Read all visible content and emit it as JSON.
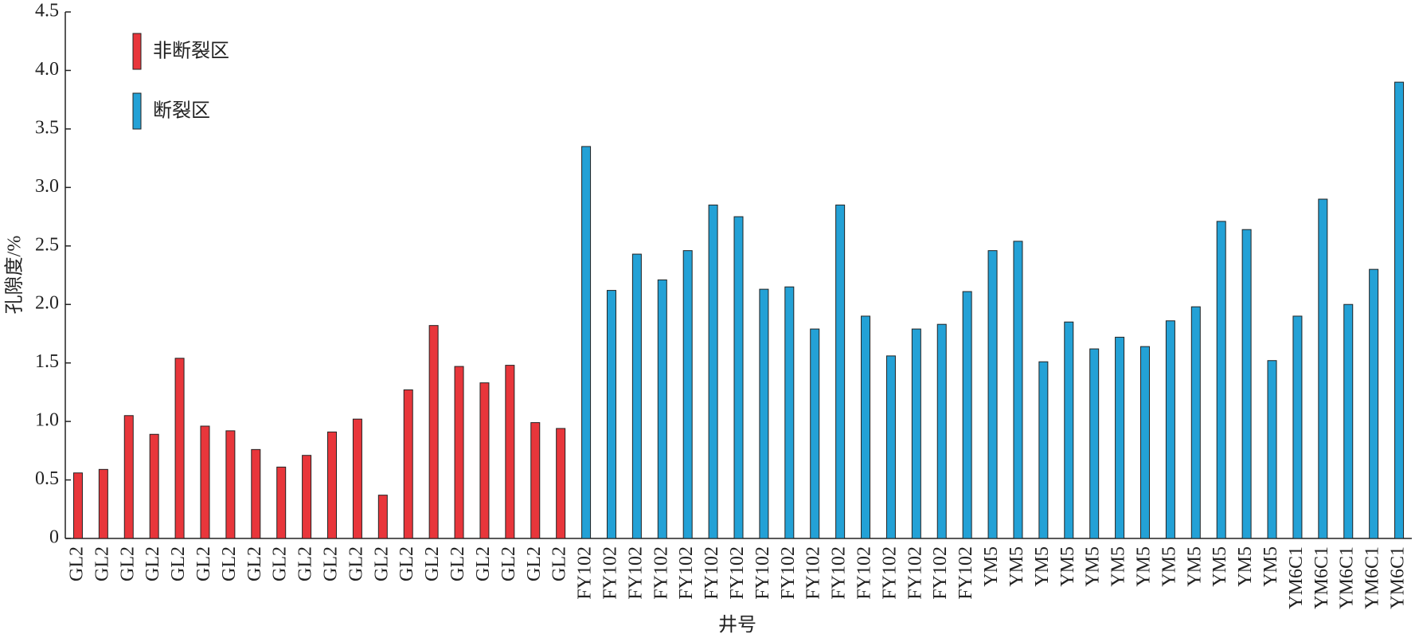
{
  "chart_data": {
    "type": "bar",
    "xlabel": "井号",
    "ylabel": "孔隙度/%",
    "categories": [
      "GL2",
      "GL2",
      "GL2",
      "GL2",
      "GL2",
      "GL2",
      "GL2",
      "GL2",
      "GL2",
      "GL2",
      "GL2",
      "GL2",
      "GL2",
      "GL2",
      "GL2",
      "GL2",
      "GL2",
      "GL2",
      "GL2",
      "GL2",
      "FY102",
      "FY102",
      "FY102",
      "FY102",
      "FY102",
      "FY102",
      "FY102",
      "FY102",
      "FY102",
      "FY102",
      "FY102",
      "FY102",
      "FY102",
      "FY102",
      "FY102",
      "FY102",
      "YM5",
      "YM5",
      "YM5",
      "YM5",
      "YM5",
      "YM5",
      "YM5",
      "YM5",
      "YM5",
      "YM5",
      "YM5",
      "YM5",
      "YM6C1",
      "YM6C1",
      "YM6C1",
      "YM6C1",
      "YM6C1"
    ],
    "series": [
      {
        "name": "非断裂区",
        "color": "#e8363b",
        "values": [
          0.56,
          0.59,
          1.05,
          0.89,
          1.54,
          0.96,
          0.92,
          0.76,
          0.61,
          0.71,
          0.91,
          1.02,
          0.37,
          1.27,
          1.82,
          1.47,
          1.33,
          1.48,
          0.99,
          0.94,
          null,
          null,
          null,
          null,
          null,
          null,
          null,
          null,
          null,
          null,
          null,
          null,
          null,
          null,
          null,
          null,
          null,
          null,
          null,
          null,
          null,
          null,
          null,
          null,
          null,
          null,
          null,
          null,
          null,
          null,
          null,
          null,
          null
        ]
      },
      {
        "name": "断裂区",
        "color": "#23a1d6",
        "values": [
          null,
          null,
          null,
          null,
          null,
          null,
          null,
          null,
          null,
          null,
          null,
          null,
          null,
          null,
          null,
          null,
          null,
          null,
          null,
          null,
          3.35,
          2.12,
          2.43,
          2.21,
          2.46,
          2.85,
          2.75,
          2.13,
          2.15,
          1.79,
          2.85,
          1.9,
          1.56,
          1.79,
          1.83,
          2.11,
          2.46,
          2.54,
          1.51,
          1.85,
          1.62,
          1.72,
          1.64,
          1.86,
          1.98,
          2.71,
          2.64,
          1.52,
          1.9,
          2.9,
          2.0,
          2.3,
          3.9
        ]
      }
    ],
    "ylim": [
      0,
      4.5
    ],
    "yticks": [
      0,
      0.5,
      {
        "value": 1,
        "label": "1.0"
      },
      1.5,
      {
        "value": 2,
        "label": "2.0"
      },
      2.5,
      {
        "value": 3,
        "label": "3.0"
      },
      3.5,
      {
        "value": 4,
        "label": "4.0"
      },
      4.5
    ],
    "legend": "upper left"
  }
}
